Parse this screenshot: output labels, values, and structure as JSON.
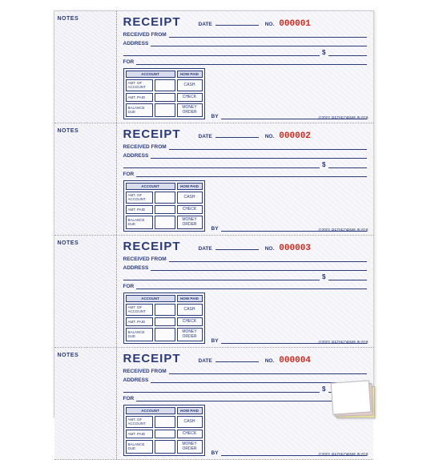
{
  "colors": {
    "ink": "#2a3a7a",
    "serial": "#c92b20",
    "pattern_light": "#f7f7fb",
    "pattern_dark": "#ededf3",
    "table_header_bg": "#d8dcec"
  },
  "stub": {
    "label": "NOTES"
  },
  "labels": {
    "title": "RECEIPT",
    "date": "DATE",
    "no": "NO.",
    "received_from": "RECEIVED FROM",
    "address": "ADDRESS",
    "dollar": "$",
    "for": "FOR",
    "by": "BY"
  },
  "account_table": {
    "col_account": "ACCOUNT",
    "col_howpaid": "HOW PAID",
    "rows": [
      {
        "label": "AMT. OF ACCOUNT",
        "pay": "CASH"
      },
      {
        "label": "AMT. PAID",
        "pay": "CHECK"
      },
      {
        "label": "BALANCE DUE",
        "pay": "MONEY ORDER"
      }
    ]
  },
  "copyright": "©2001 REDIFORM® 8L818",
  "receipts": [
    {
      "serial": "000001"
    },
    {
      "serial": "000002"
    },
    {
      "serial": "000003"
    },
    {
      "serial": "000004"
    }
  ],
  "corner_pages": {
    "colors": [
      "#ffffff",
      "#f5d9d9",
      "#f3e9a8"
    ]
  }
}
